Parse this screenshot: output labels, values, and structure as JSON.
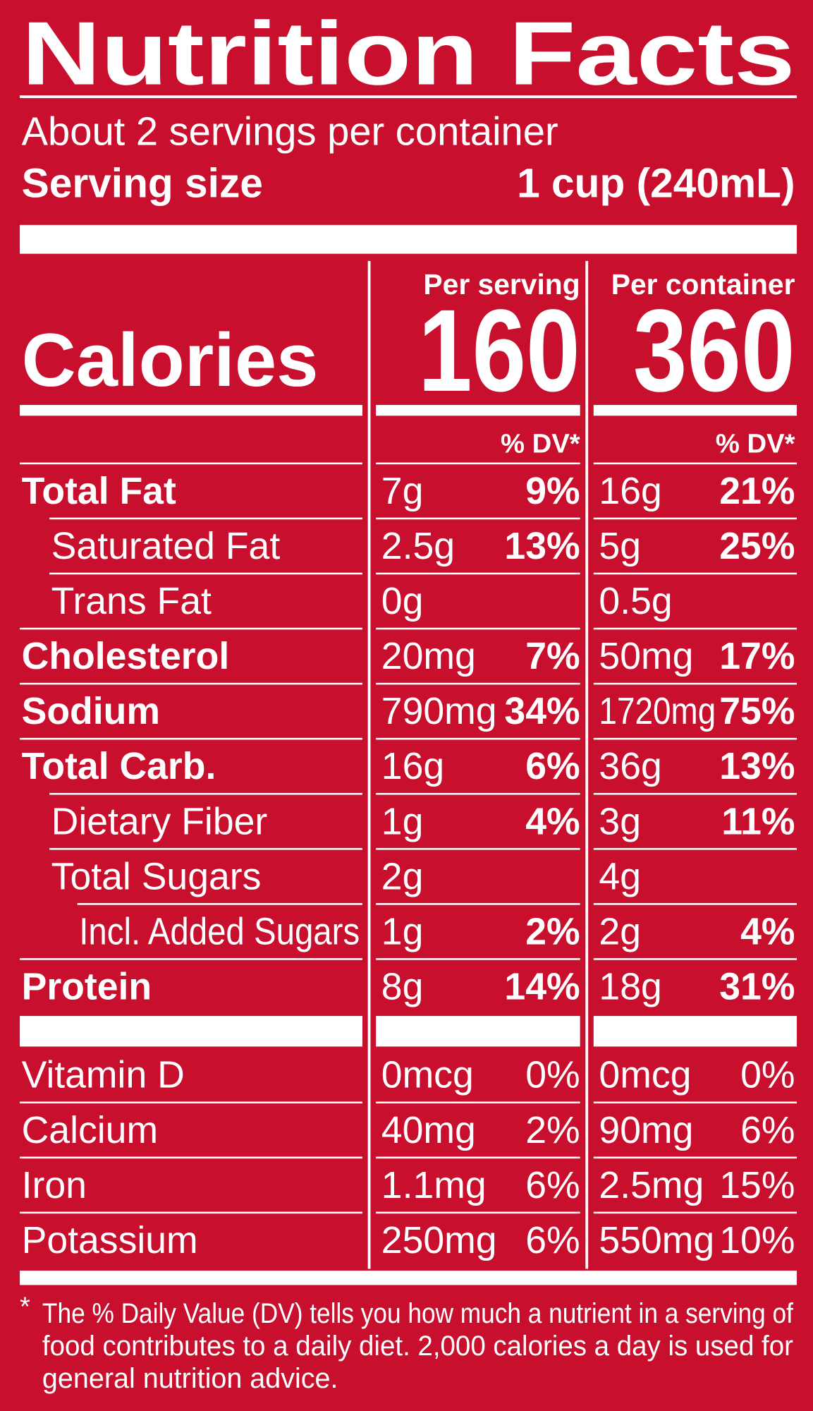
{
  "title": "Nutrition Facts",
  "servings": "About 2 servings per container",
  "serving_size": {
    "label": "Serving size",
    "value": "1 cup (240mL)"
  },
  "calories": {
    "label": "Calories",
    "columns": [
      {
        "header": "Per serving",
        "value": "160",
        "dv_header": "% DV*"
      },
      {
        "header": "Per container",
        "value": "360",
        "dv_header": "% DV*"
      }
    ]
  },
  "nutrients": [
    {
      "name": "Total Fat",
      "serving": {
        "amount": "7g",
        "dv": "9%"
      },
      "container": {
        "amount": "16g",
        "dv": "21%"
      },
      "sub": [
        {
          "name": "Saturated Fat",
          "serving": {
            "amount": "2.5g",
            "dv": "13%"
          },
          "container": {
            "amount": "5g",
            "dv": "25%"
          }
        },
        {
          "name": "Trans Fat",
          "serving": {
            "amount": "0g"
          },
          "container": {
            "amount": "0.5g"
          }
        }
      ]
    },
    {
      "name": "Cholesterol",
      "serving": {
        "amount": "20mg",
        "dv": "7%"
      },
      "container": {
        "amount": "50mg",
        "dv": "17%"
      }
    },
    {
      "name": "Sodium",
      "serving": {
        "amount": "790mg",
        "dv": "34%"
      },
      "container": {
        "amount": "1720mg",
        "dv": "75%"
      }
    },
    {
      "name": "Total Carb.",
      "serving": {
        "amount": "16g",
        "dv": "6%"
      },
      "container": {
        "amount": "36g",
        "dv": "13%"
      },
      "sub": [
        {
          "name": "Dietary Fiber",
          "serving": {
            "amount": "1g",
            "dv": "4%"
          },
          "container": {
            "amount": "3g",
            "dv": "11%"
          }
        },
        {
          "name": "Total Sugars",
          "serving": {
            "amount": "2g"
          },
          "container": {
            "amount": "4g"
          },
          "sub": [
            {
              "name": "Incl. Added Sugars",
              "serving": {
                "amount": "1g",
                "dv": "2%"
              },
              "container": {
                "amount": "2g",
                "dv": "4%"
              }
            }
          ]
        }
      ]
    },
    {
      "name": "Protein",
      "serving": {
        "amount": "8g",
        "dv": "14%"
      },
      "container": {
        "amount": "18g",
        "dv": "31%"
      }
    }
  ],
  "vitamins": [
    {
      "name": "Vitamin D",
      "serving": {
        "amount": "0mcg",
        "dv": "0%"
      },
      "container": {
        "amount": "0mcg",
        "dv": "0%"
      }
    },
    {
      "name": "Calcium",
      "serving": {
        "amount": "40mg",
        "dv": "2%"
      },
      "container": {
        "amount": "90mg",
        "dv": "6%"
      }
    },
    {
      "name": "Iron",
      "serving": {
        "amount": "1.1mg",
        "dv": "6%"
      },
      "container": {
        "amount": "2.5mg",
        "dv": "15%"
      }
    },
    {
      "name": "Potassium",
      "serving": {
        "amount": "250mg",
        "dv": "6%"
      },
      "container": {
        "amount": "550mg",
        "dv": "10%"
      }
    }
  ],
  "footnote": {
    "mark": "*",
    "lines": [
      "The % Daily Value (DV) tells you how much a nutrient in a serving of",
      "food contributes to a daily diet. 2,000 calories a day is used for",
      "general nutrition advice."
    ]
  }
}
